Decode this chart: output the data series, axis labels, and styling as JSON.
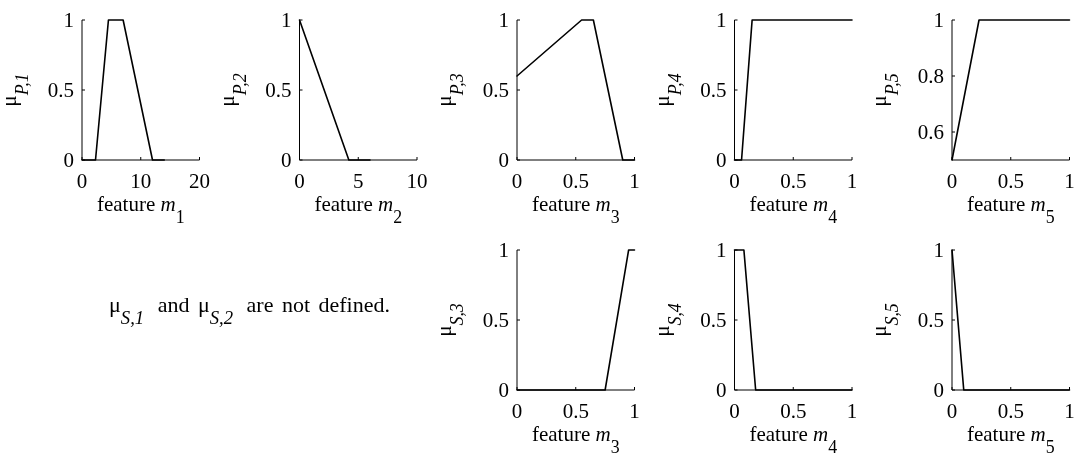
{
  "chart_data": [
    {
      "type": "line",
      "color": "#000000",
      "x": [
        0,
        2.3,
        4.5,
        7,
        12,
        14
      ],
      "values": [
        0,
        0,
        1,
        1,
        0,
        0
      ],
      "xlim": [
        0,
        20
      ],
      "xticks": [
        0,
        10,
        20
      ],
      "ylim": [
        0,
        1
      ],
      "yticks": [
        0,
        0.5,
        1
      ],
      "xlabel": "feature m$_{1}$",
      "ylabel": "μ$_{P,1}$"
    },
    {
      "type": "line",
      "color": "#000000",
      "x": [
        0,
        4.2,
        6
      ],
      "values": [
        1,
        0,
        0
      ],
      "xlim": [
        0,
        10
      ],
      "xticks": [
        0,
        5,
        10
      ],
      "ylim": [
        0,
        1
      ],
      "yticks": [
        0,
        0.5,
        1
      ],
      "xlabel": "feature m$_{2}$",
      "ylabel": "μ$_{P,2}$"
    },
    {
      "type": "line",
      "color": "#000000",
      "x": [
        0,
        0.55,
        0.65,
        0.9,
        1
      ],
      "values": [
        0.6,
        1,
        1,
        0,
        0
      ],
      "xlim": [
        0,
        1
      ],
      "xticks": [
        0,
        0.5,
        1
      ],
      "ylim": [
        0,
        1
      ],
      "yticks": [
        0,
        0.5,
        1
      ],
      "xlabel": "feature m$_{3}$",
      "ylabel": "μ$_{P,3}$"
    },
    {
      "type": "line",
      "color": "#000000",
      "x": [
        0,
        0.06,
        0.15,
        1
      ],
      "values": [
        0,
        0,
        1,
        1
      ],
      "xlim": [
        0,
        1
      ],
      "xticks": [
        0,
        0.5,
        1
      ],
      "ylim": [
        0,
        1
      ],
      "yticks": [
        0,
        0.5,
        1
      ],
      "xlabel": "feature m$_{4}$",
      "ylabel": "μ$_{P,4}$"
    },
    {
      "type": "line",
      "color": "#000000",
      "x": [
        0,
        0.23,
        1
      ],
      "values": [
        0.5,
        1,
        1
      ],
      "xlim": [
        0,
        1
      ],
      "xticks": [
        0,
        0.5,
        1
      ],
      "ylim": [
        0.5,
        1
      ],
      "yticks": [
        0.6,
        0.8,
        1
      ],
      "xlabel": "feature m$_{5}$",
      "ylabel": "μ$_{P,5}$"
    },
    {
      "type": "other",
      "annotations": [
        "μ$_{S,1}$ and μ$_{S,2}$ are not defined."
      ]
    },
    {
      "type": "line",
      "color": "#000000",
      "x": [
        0,
        0.75,
        0.95,
        1
      ],
      "values": [
        0,
        0,
        1,
        1
      ],
      "xlim": [
        0,
        1
      ],
      "xticks": [
        0,
        0.5,
        1
      ],
      "ylim": [
        0,
        1
      ],
      "yticks": [
        0,
        0.5,
        1
      ],
      "xlabel": "feature m$_{3}$",
      "ylabel": "μ$_{S,3}$"
    },
    {
      "type": "line",
      "color": "#000000",
      "x": [
        0,
        0.08,
        0.18,
        1
      ],
      "values": [
        1,
        1,
        0,
        0
      ],
      "xlim": [
        0,
        1
      ],
      "xticks": [
        0,
        0.5,
        1
      ],
      "ylim": [
        0,
        1
      ],
      "yticks": [
        0,
        0.5,
        1
      ],
      "xlabel": "feature m$_{4}$",
      "ylabel": "μ$_{S,4}$"
    },
    {
      "type": "line",
      "color": "#000000",
      "x": [
        0,
        0.1,
        1
      ],
      "values": [
        1,
        0,
        0
      ],
      "xlim": [
        0,
        1
      ],
      "xticks": [
        0,
        0.5,
        1
      ],
      "ylim": [
        0,
        1
      ],
      "yticks": [
        0,
        0.5,
        1
      ],
      "xlabel": "feature m$_{5}$",
      "ylabel": "μ$_{S,5}$"
    }
  ]
}
